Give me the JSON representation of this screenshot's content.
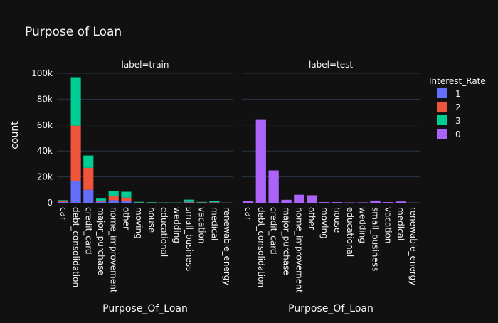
{
  "chart_data": {
    "type": "bar",
    "title": "Purpose of Loan",
    "ylabel": "count",
    "ylim": [
      0,
      100000
    ],
    "yticks": [
      {
        "value": 0,
        "label": "0"
      },
      {
        "value": 20000,
        "label": "20k"
      },
      {
        "value": 40000,
        "label": "40k"
      },
      {
        "value": 60000,
        "label": "60k"
      },
      {
        "value": 80000,
        "label": "80k"
      },
      {
        "value": 100000,
        "label": "100k"
      }
    ],
    "grid": true,
    "legend": {
      "title": "Interest_Rate",
      "placement": "right",
      "items": [
        {
          "name": "1",
          "color": "#636efa"
        },
        {
          "name": "2",
          "color": "#ef553b"
        },
        {
          "name": "3",
          "color": "#00cc96"
        },
        {
          "name": "0",
          "color": "#ab63fa"
        }
      ]
    },
    "categories": [
      "car",
      "debt_consolidation",
      "credit_card",
      "major_purchase",
      "home_improvement",
      "other",
      "moving",
      "house",
      "educational",
      "wedding",
      "small_business",
      "vacation",
      "medical",
      "renewable_energy"
    ],
    "panels": [
      {
        "facet_label": "label=train",
        "xlabel": "Purpose_Of_Loan",
        "series": [
          {
            "name": "1",
            "color": "#636efa",
            "values": [
              600,
              17000,
              10000,
              800,
              2000,
              1500,
              100,
              100,
              50,
              50,
              300,
              100,
              200,
              20
            ]
          },
          {
            "name": "2",
            "color": "#ef553b",
            "values": [
              700,
              42500,
              17000,
              900,
              3500,
              2500,
              150,
              100,
              80,
              60,
              400,
              150,
              250,
              30
            ]
          },
          {
            "name": "3",
            "color": "#00cc96",
            "values": [
              700,
              37500,
              9500,
              1500,
              3500,
              4500,
              450,
              300,
              170,
              140,
              1700,
              400,
              900,
              50
            ]
          }
        ]
      },
      {
        "facet_label": "label=test",
        "xlabel": "Purpose_Of_Loan",
        "series": [
          {
            "name": "0",
            "color": "#ab63fa",
            "values": [
              1300,
              64500,
              25000,
              2300,
              6200,
              5800,
              500,
              500,
              250,
              300,
              1700,
              500,
              1000,
              80
            ]
          }
        ]
      }
    ]
  }
}
